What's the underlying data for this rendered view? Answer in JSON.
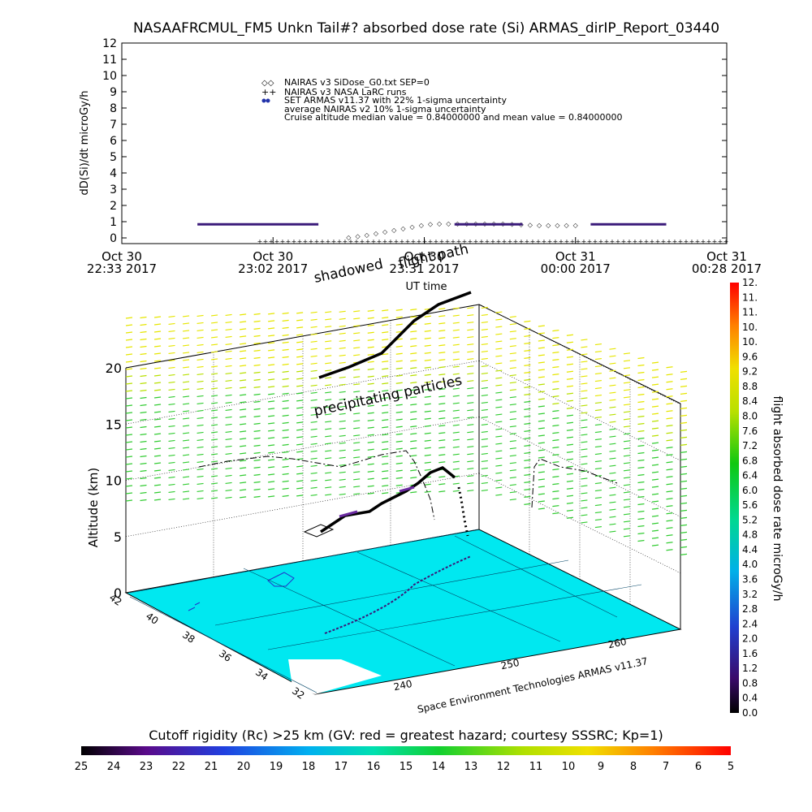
{
  "chart_data": [
    {
      "type": "scatter",
      "title": "NASAAFRCMUL_FM5 Unkn Tail#? absorbed dose rate (Si) ARMAS_dirIP_Report_03440",
      "ylabel": "dD(Si)/dt microGy/h",
      "ylim": [
        0,
        12
      ],
      "y_ticks": [
        "0",
        "1",
        "2",
        "3",
        "4",
        "5",
        "6",
        "7",
        "8",
        "9",
        "10",
        "11",
        "12"
      ],
      "x_tick_labels": [
        [
          "Oct 30",
          "22:33 2017"
        ],
        [
          "Oct 30",
          "23:02 2017"
        ],
        [
          "Oct 30",
          "23:31 2017"
        ],
        [
          "Oct 31",
          "00:00 2017"
        ],
        [
          "Oct 31",
          "00:28 2017"
        ]
      ],
      "xlabel": "UT time",
      "legend": [
        "NAIRAS v3 SiDose_G0.txt SEP=0",
        "NAIRAS v3 NASA LaRC runs",
        "SET ARMAS v11.37 with 22% 1-sigma uncertainty",
        "average NAIRAS v2 10% 1-sigma uncertainty",
        "Cruise altitude median value = 0.84000000 and mean value = 0.84000000"
      ],
      "series": [
        {
          "name": "NAIRAS v3 SiDose_G0.txt SEP=0",
          "x_frac": [
            0.5,
            0.52,
            0.54,
            0.56,
            0.58,
            0.6,
            0.62,
            0.64,
            0.66,
            0.68,
            0.7,
            0.72,
            0.74,
            0.76,
            0.78,
            0.8,
            0.82,
            0.84,
            0.86,
            0.88,
            0.9,
            0.92,
            0.94,
            0.96,
            0.98,
            1.0
          ],
          "values": [
            0.05,
            0.12,
            0.2,
            0.3,
            0.4,
            0.5,
            0.6,
            0.7,
            0.8,
            0.88,
            0.9,
            0.9,
            0.9,
            0.9,
            0.9,
            0.9,
            0.9,
            0.9,
            0.88,
            0.85,
            0.82,
            0.8,
            0.8,
            0.8,
            0.8,
            0.8
          ]
        },
        {
          "name": "SET ARMAS v11.37 with 22% 1-sigma uncertainty",
          "segments": [
            {
              "x_start": 0.5,
              "x_end": 1.3,
              "value": 0.84
            },
            {
              "x_start": 1.3,
              "x_end": 1.55,
              "value": 0.0
            },
            {
              "x_start": 2.2,
              "x_end": 2.65,
              "value": 0.84
            },
            {
              "x_start": 3.1,
              "x_end": 3.6,
              "value": 0.84
            }
          ]
        }
      ]
    },
    {
      "type": "scatter",
      "zlabel": "Altitude (km)",
      "z_ticks": [
        "0",
        "5",
        "10",
        "15",
        "20"
      ],
      "lat_ticks": [
        "32",
        "34",
        "36",
        "38",
        "40",
        "42"
      ],
      "lon_ticks": [
        "240",
        "250",
        "260"
      ],
      "annotations": {
        "shadowed": "shadowed",
        "flight_path": "flight path",
        "precipitating": "precipitating particles",
        "credit": "Space Environment Technologies ARMAS v11.37"
      }
    },
    {
      "type": "heatmap",
      "colorbar_label": "flight absorbed dose rate microGy/h",
      "colorbar_ticks": [
        "0.0",
        "0.4",
        "0.8",
        "1.2",
        "1.6",
        "2.0",
        "2.4",
        "2.8",
        "3.2",
        "3.6",
        "4.0",
        "4.4",
        "4.8",
        "5.2",
        "5.6",
        "6.0",
        "6.4",
        "6.8",
        "7.2",
        "7.6",
        "8.0",
        "8.4",
        "8.8",
        "9.2",
        "9.6",
        "10.",
        "10.",
        "11.",
        "11.",
        "12."
      ]
    },
    {
      "type": "heatmap",
      "colorbar_label": "Cutoff rigidity (Rc) >25 km (GV: red = greatest hazard; courtesy SSSRC; Kp=1)",
      "colorbar_ticks": [
        "25",
        "24",
        "23",
        "22",
        "21",
        "20",
        "19",
        "18",
        "17",
        "16",
        "15",
        "14",
        "13",
        "12",
        "11",
        "10",
        "9",
        "8",
        "7",
        "6",
        "5"
      ]
    }
  ],
  "colors": {
    "surface": "#00e8f0",
    "grid_yellow": "#e6e600",
    "grid_green": "#33cc33",
    "armas": "#3a1a7a"
  }
}
